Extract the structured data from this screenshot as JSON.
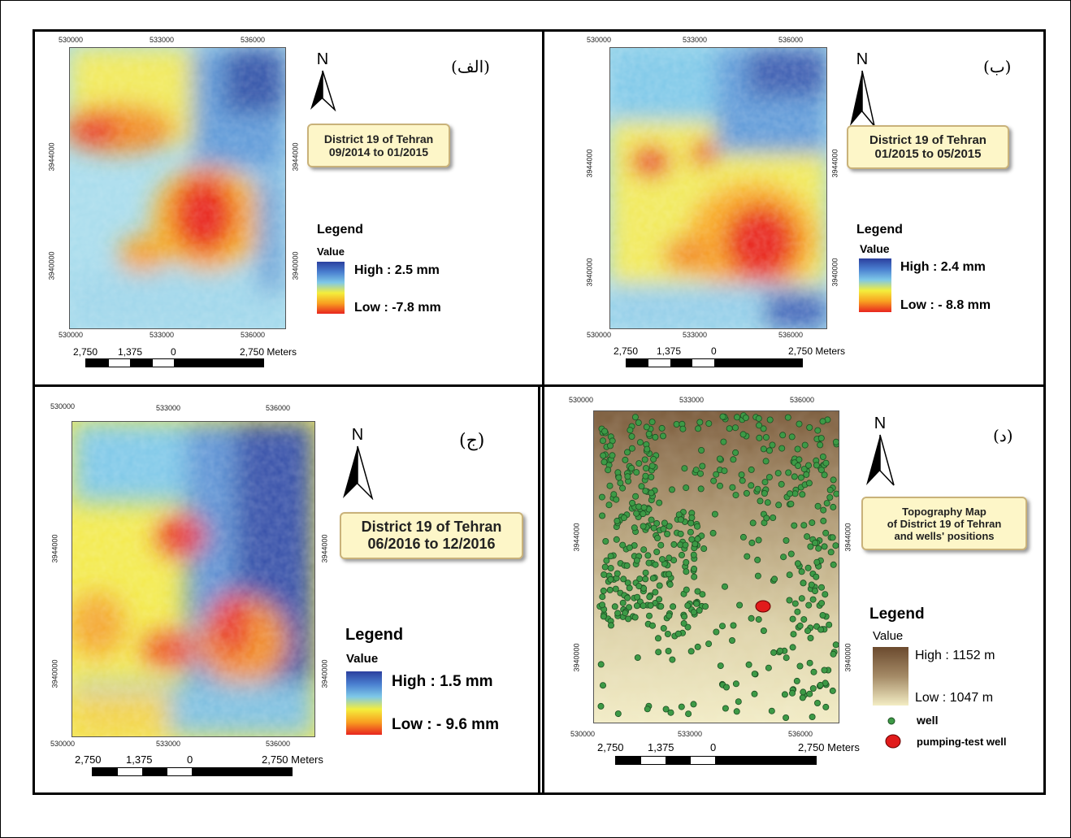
{
  "ticks": {
    "x1": "530000",
    "x2": "533000",
    "x3": "536000",
    "y1": "3944000",
    "y2": "3940000"
  },
  "scale": {
    "a": "2,750",
    "b": "1,375",
    "c": "0",
    "d": "2,750 Meters"
  },
  "north": "N",
  "panels": [
    {
      "label": "(الف)",
      "title1": "District 19 of Tehran",
      "title2": "09/2014 to 01/2015",
      "legend": "Legend",
      "value": "Value",
      "high": "High : 2.5 mm",
      "low": "Low : -7.8 mm"
    },
    {
      "label": "(ب)",
      "title1": "District 19 of Tehran",
      "title2": "01/2015 to 05/2015",
      "legend": "Legend",
      "value": "Value",
      "high": "High : 2.4 mm",
      "low": "Low : - 8.8 mm"
    },
    {
      "label": "(ج)",
      "title1": "District 19 of Tehran",
      "title2": "06/2016 to 12/2016",
      "legend": "Legend",
      "value": "Value",
      "high": "High : 1.5 mm",
      "low": "Low : - 9.6 mm"
    },
    {
      "label": "(د)",
      "title1": "Topography Map",
      "title2": "of District 19 of Tehran",
      "title3": "and wells' positions",
      "legend": "Legend",
      "value": "Value",
      "high": "High : 1152 m",
      "low": "Low : 1047 m",
      "well": "well",
      "pump": "pumping-test well"
    }
  ],
  "colors": {
    "deform_ramp": [
      "#2b3f9e",
      "#4a7fd0",
      "#7ec8e8",
      "#f4ee3c",
      "#f8a020",
      "#e8251f"
    ],
    "topo_ramp": [
      "#6b4a2e",
      "#a48a66",
      "#f3edc4"
    ],
    "well": "#3d9a46",
    "pump": "#e11b1b"
  }
}
